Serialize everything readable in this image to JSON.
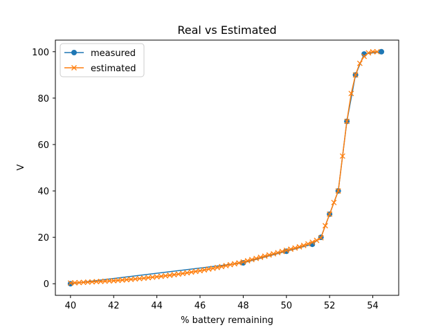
{
  "chart_data": {
    "type": "line",
    "title": "Real vs Estimated",
    "xlabel": "% battery remaining",
    "ylabel": "V",
    "xlim": [
      39.3,
      55.2
    ],
    "ylim": [
      -5,
      105
    ],
    "xticks": [
      40,
      42,
      44,
      46,
      48,
      50,
      52,
      54
    ],
    "yticks": [
      0,
      20,
      40,
      60,
      80,
      100
    ],
    "grid": false,
    "legend": "top-left",
    "series": [
      {
        "name": "measured",
        "color": "#1f77b4",
        "marker": "circle",
        "x": [
          40.0,
          48.0,
          50.0,
          51.2,
          51.6,
          52.0,
          52.4,
          52.8,
          53.2,
          53.6,
          54.4
        ],
        "y": [
          0,
          9,
          14,
          17,
          20,
          30,
          40,
          70,
          90,
          99,
          100
        ]
      },
      {
        "name": "estimated",
        "color": "#ff7f0e",
        "marker": "x",
        "x": [
          40.0,
          40.2,
          40.4,
          40.6,
          40.8,
          41.0,
          41.2,
          41.4,
          41.6,
          41.8,
          42.0,
          42.2,
          42.4,
          42.6,
          42.8,
          43.0,
          43.2,
          43.4,
          43.6,
          43.8,
          44.0,
          44.2,
          44.4,
          44.6,
          44.8,
          45.0,
          45.2,
          45.4,
          45.6,
          45.8,
          46.0,
          46.2,
          46.4,
          46.6,
          46.8,
          47.0,
          47.2,
          47.4,
          47.6,
          47.8,
          48.0,
          48.2,
          48.4,
          48.6,
          48.8,
          49.0,
          49.2,
          49.4,
          49.6,
          49.8,
          50.0,
          50.2,
          50.4,
          50.6,
          50.8,
          51.0,
          51.2,
          51.4,
          51.6,
          51.8,
          52.0,
          52.2,
          52.4,
          52.6,
          52.8,
          53.0,
          53.2,
          53.4,
          53.6,
          53.8,
          54.0,
          54.2
        ],
        "y": [
          0.3,
          0.4,
          0.5,
          0.6,
          0.7,
          0.8,
          0.9,
          1.0,
          1.1,
          1.2,
          1.3,
          1.45,
          1.6,
          1.75,
          1.9,
          2.05,
          2.2,
          2.4,
          2.6,
          2.8,
          3.0,
          3.2,
          3.4,
          3.65,
          3.9,
          4.15,
          4.4,
          4.7,
          5.0,
          5.3,
          5.6,
          5.95,
          6.3,
          6.65,
          7.0,
          7.4,
          7.8,
          8.2,
          8.6,
          9.0,
          9.4,
          9.9,
          10.4,
          10.9,
          11.4,
          11.9,
          12.4,
          12.9,
          13.4,
          13.9,
          14.4,
          14.9,
          15.4,
          15.9,
          16.5,
          17.2,
          17.9,
          18.7,
          19.8,
          25.0,
          30.0,
          35.0,
          40.0,
          55.0,
          70.0,
          82.0,
          90.0,
          95.0,
          98.0,
          99.5,
          100.0,
          100.0
        ]
      }
    ]
  }
}
